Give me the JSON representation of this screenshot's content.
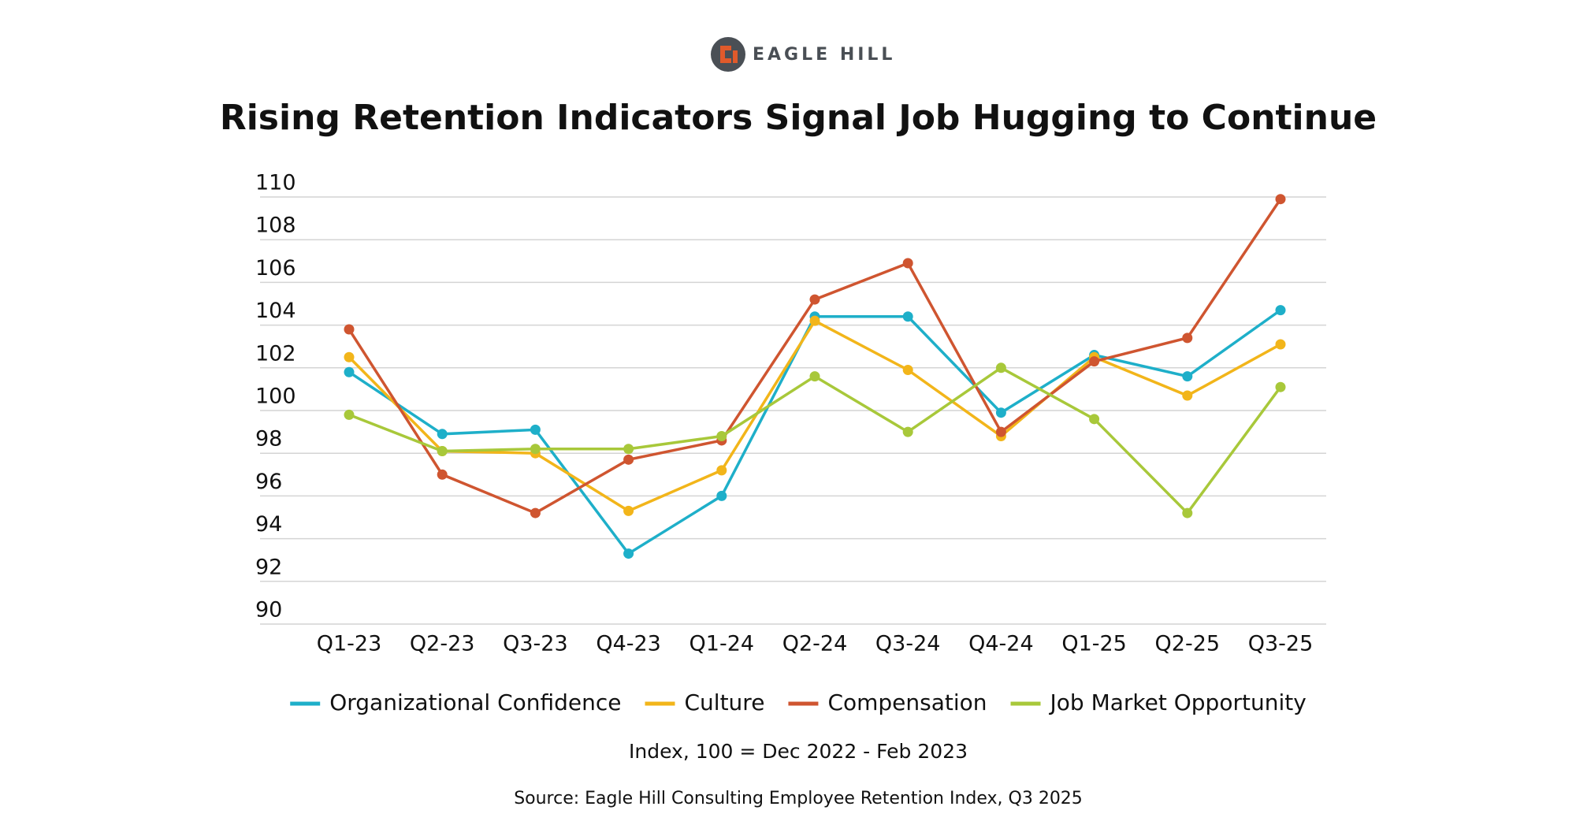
{
  "chart_data": {
    "type": "line",
    "brand": "EAGLE HILL",
    "title": "Rising Retention Indicators Signal Job Hugging to Continue",
    "categories": [
      "Q1-23",
      "Q2-23",
      "Q3-23",
      "Q4-23",
      "Q1-24",
      "Q2-24",
      "Q3-24",
      "Q4-24",
      "Q1-25",
      "Q2-25",
      "Q3-25"
    ],
    "series": [
      {
        "name": "Organizational Confidence",
        "color": "#1eafc9",
        "values": [
          101.8,
          98.9,
          99.1,
          93.3,
          96.0,
          104.4,
          104.4,
          99.9,
          102.6,
          101.6,
          104.7
        ]
      },
      {
        "name": "Culture",
        "color": "#f2b51a",
        "values": [
          102.5,
          98.1,
          98.0,
          95.3,
          97.2,
          104.2,
          101.9,
          98.8,
          102.5,
          100.7,
          103.1
        ]
      },
      {
        "name": "Compensation",
        "color": "#cf5530",
        "values": [
          103.8,
          97.0,
          95.2,
          97.7,
          98.6,
          105.2,
          106.9,
          99.0,
          102.3,
          103.4,
          109.9
        ]
      },
      {
        "name": "Job Market Opportunity",
        "color": "#a8c83a",
        "values": [
          99.8,
          98.1,
          98.2,
          98.2,
          98.8,
          101.6,
          99.0,
          102.0,
          99.6,
          95.2,
          101.1
        ]
      }
    ],
    "ylim": [
      90,
      110
    ],
    "yticks": [
      90,
      92,
      94,
      96,
      98,
      100,
      102,
      104,
      106,
      108,
      110
    ],
    "grid": true,
    "legend": "bottom",
    "note": "Index, 100 = Dec 2022 - Feb 2023",
    "source": "Source: Eagle Hill Consulting Employee Retention Index, Q3 2025"
  }
}
